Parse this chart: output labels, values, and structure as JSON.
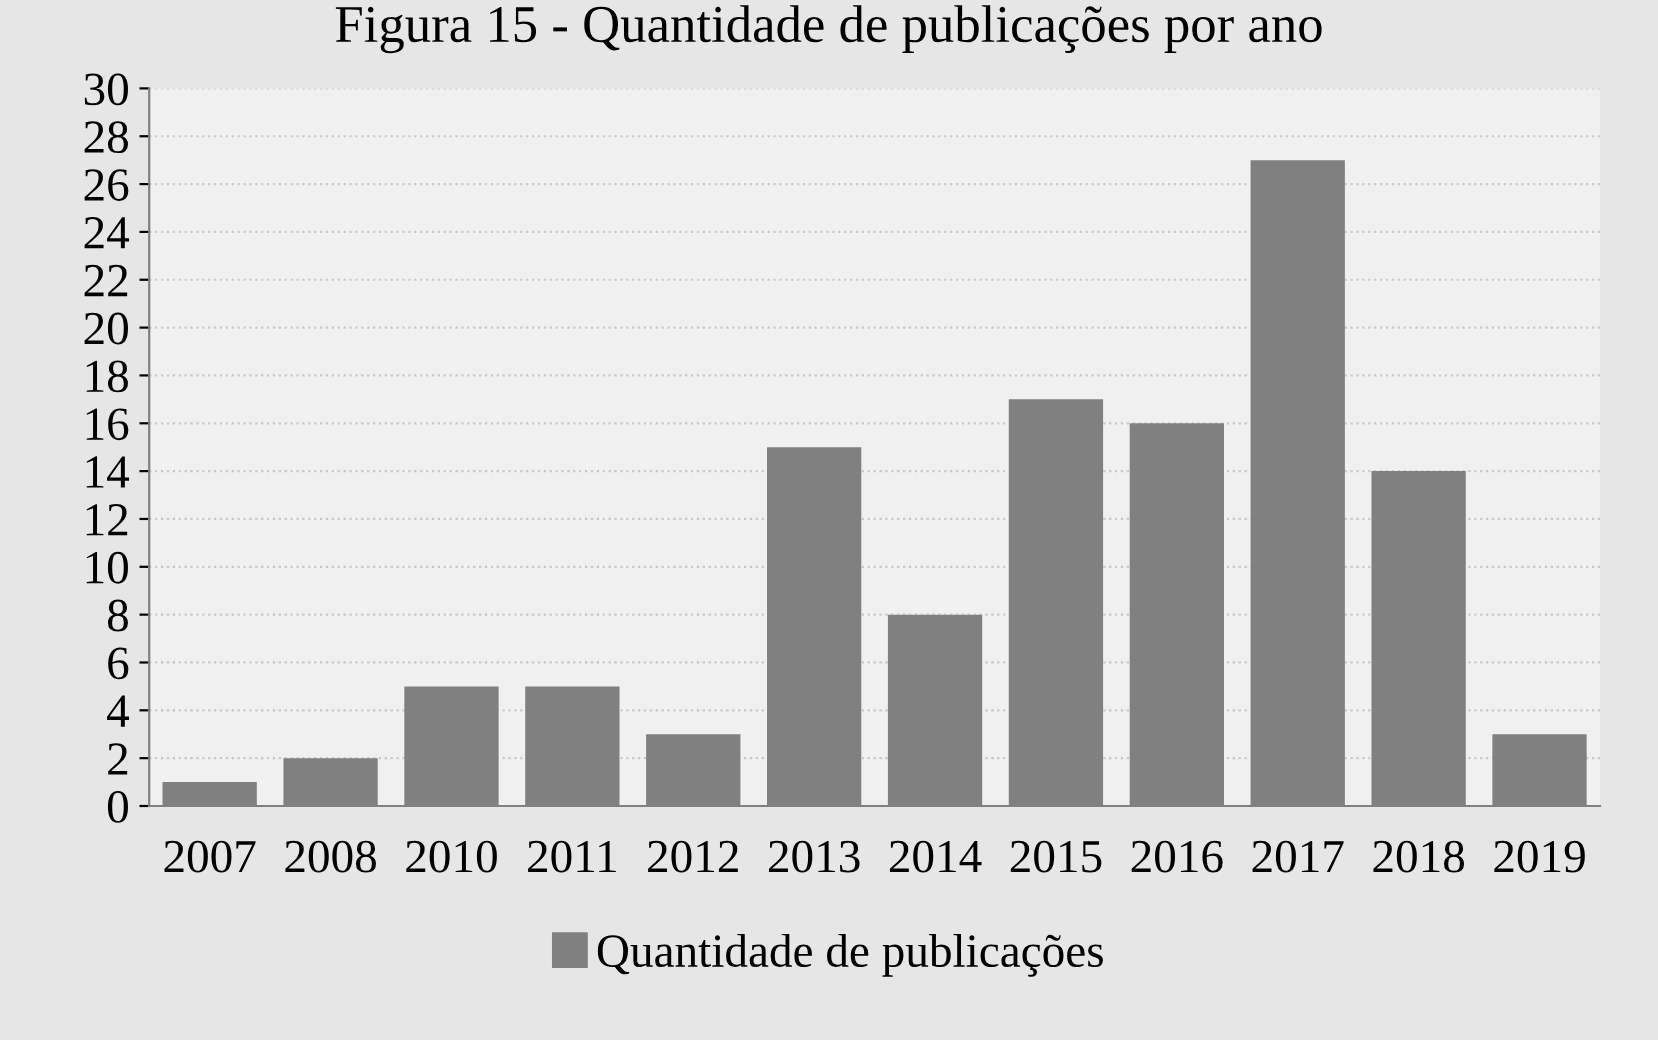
{
  "chart_data": {
    "type": "bar",
    "title": "Figura 15 - Quantidade de publicações por ano",
    "categories": [
      "2007",
      "2008",
      "2010",
      "2011",
      "2012",
      "2013",
      "2014",
      "2015",
      "2016",
      "2017",
      "2018",
      "2019"
    ],
    "series": [
      {
        "name": "Quantidade de publicações",
        "color": "#808080",
        "values": [
          1,
          2,
          5,
          5,
          3,
          15,
          8,
          17,
          16,
          27,
          14,
          3
        ]
      }
    ],
    "ylim": [
      0,
      30
    ],
    "yticks": [
      0,
      2,
      4,
      6,
      8,
      10,
      12,
      14,
      16,
      18,
      20,
      22,
      24,
      26,
      28,
      30
    ],
    "grid": "y",
    "legend": "bottom"
  }
}
